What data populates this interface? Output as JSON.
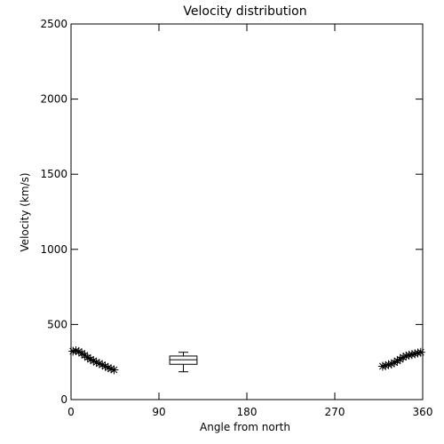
{
  "chart_data": {
    "type": "scatter",
    "title": "Velocity distribution",
    "xlabel": "Angle from north",
    "ylabel": "Velocity (km/s)",
    "xlim": [
      0,
      360
    ],
    "ylim": [
      0,
      2500
    ],
    "xticks": [
      0,
      90,
      180,
      270,
      360
    ],
    "yticks": [
      0,
      500,
      1000,
      1500,
      2000,
      2500
    ],
    "grid": false,
    "marker": "asterisk",
    "points": [
      {
        "x": 2,
        "y": 322
      },
      {
        "x": 5,
        "y": 325
      },
      {
        "x": 8,
        "y": 320
      },
      {
        "x": 11,
        "y": 308
      },
      {
        "x": 14,
        "y": 295
      },
      {
        "x": 17,
        "y": 280
      },
      {
        "x": 20,
        "y": 268
      },
      {
        "x": 23,
        "y": 258
      },
      {
        "x": 26,
        "y": 248
      },
      {
        "x": 29,
        "y": 240
      },
      {
        "x": 32,
        "y": 232
      },
      {
        "x": 35,
        "y": 222
      },
      {
        "x": 38,
        "y": 212
      },
      {
        "x": 41,
        "y": 205
      },
      {
        "x": 44,
        "y": 198
      },
      {
        "x": 319,
        "y": 222
      },
      {
        "x": 322,
        "y": 226
      },
      {
        "x": 325,
        "y": 233
      },
      {
        "x": 328,
        "y": 237
      },
      {
        "x": 331,
        "y": 246
      },
      {
        "x": 334,
        "y": 258
      },
      {
        "x": 337,
        "y": 268
      },
      {
        "x": 340,
        "y": 282
      },
      {
        "x": 343,
        "y": 290
      },
      {
        "x": 346,
        "y": 296
      },
      {
        "x": 349,
        "y": 300
      },
      {
        "x": 352,
        "y": 305
      },
      {
        "x": 355,
        "y": 310
      },
      {
        "x": 358,
        "y": 315
      }
    ],
    "boxplot": {
      "x_center": 115,
      "x_halfwidth": 14,
      "whisker_halfwidth": 5,
      "min": 185,
      "q1": 235,
      "median": 265,
      "q3": 290,
      "max": 315
    }
  }
}
